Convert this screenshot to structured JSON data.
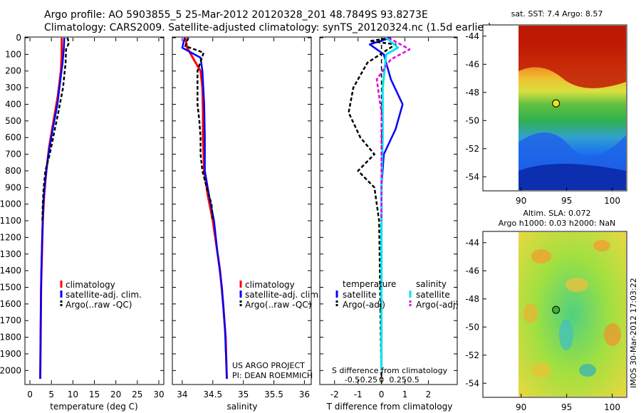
{
  "title": {
    "line1": "Argo profile: AO 5903855_5 25-Mar-2012 20120328_201 48.7849S 93.8273E",
    "line2": "Climatology: CARS2009. Satellite-adjusted climatology: synTS_20120324.nc (1.5d earlier)"
  },
  "footer": {
    "project": "US ARGO PROJECT",
    "pi": "PI: DEAN ROEMMICH"
  },
  "stamp": "IMOS 30-Mar-2012 17:03:22",
  "maps": {
    "sst": {
      "title": "sat. SST: 7.4 Argo: 8.57"
    },
    "sla": {
      "title1": "Altim. SLA: 0.072",
      "title2": "Argo h1000: 0.03 h2000: NaN"
    },
    "yticks": [
      "-44",
      "-46",
      "-48",
      "-50",
      "-52",
      "-54"
    ],
    "xticks": [
      "90",
      "95",
      "100"
    ],
    "float_marker": {
      "lon": 93.83,
      "lat": -48.78
    }
  },
  "colors": {
    "climatology": "#ff0000",
    "satellite": "#0000ff",
    "argo": "#000000",
    "sal_satellite": "#00e5ee",
    "sal_argo": "#e000e0"
  },
  "chart_data": [
    {
      "type": "line",
      "title": "",
      "xlabel": "temperature (deg C)",
      "ylabel": "",
      "xlim": [
        -1,
        31
      ],
      "ylim": [
        2080,
        0
      ],
      "xticks": [
        0,
        5,
        10,
        15,
        20,
        25,
        30
      ],
      "yticks": [
        0,
        100,
        200,
        300,
        400,
        500,
        600,
        700,
        800,
        900,
        1000,
        1100,
        1200,
        1300,
        1400,
        1500,
        1600,
        1700,
        1800,
        1900,
        2000
      ],
      "legend": [
        "climatology",
        "satellite-adj. clim.",
        "Argo(..raw -QC)"
      ],
      "series": [
        {
          "name": "climatology",
          "points": [
            [
              7.4,
              0
            ],
            [
              7.4,
              100
            ],
            [
              7.2,
              200
            ],
            [
              6.5,
              350
            ],
            [
              5.5,
              500
            ],
            [
              4.5,
              650
            ],
            [
              3.8,
              800
            ],
            [
              3.3,
              950
            ],
            [
              3.0,
              1100
            ],
            [
              2.8,
              1300
            ],
            [
              2.6,
              1500
            ],
            [
              2.5,
              1800
            ],
            [
              2.4,
              2050
            ]
          ]
        },
        {
          "name": "satellite-adj. clim.",
          "points": [
            [
              8.0,
              0
            ],
            [
              7.9,
              60
            ],
            [
              7.6,
              150
            ],
            [
              7.1,
              250
            ],
            [
              6.4,
              400
            ],
            [
              5.3,
              550
            ],
            [
              4.3,
              700
            ],
            [
              3.6,
              850
            ],
            [
              3.1,
              1000
            ],
            [
              2.85,
              1200
            ],
            [
              2.65,
              1400
            ],
            [
              2.5,
              1700
            ],
            [
              2.4,
              2050
            ]
          ]
        },
        {
          "name": "Argo(..raw -QC)",
          "points": [
            [
              8.7,
              0
            ],
            [
              9.1,
              30
            ],
            [
              8.4,
              70
            ],
            [
              8.3,
              150
            ],
            [
              7.7,
              300
            ],
            [
              6.6,
              450
            ],
            [
              5.4,
              600
            ],
            [
              4.6,
              700
            ],
            [
              3.6,
              800
            ],
            [
              3.2,
              900
            ],
            [
              3.0,
              1000
            ],
            [
              2.9,
              1100
            ]
          ]
        }
      ]
    },
    {
      "type": "line",
      "title": "",
      "xlabel": "salinity",
      "ylabel": "",
      "xlim": [
        33.85,
        36.1
      ],
      "ylim": [
        2080,
        0
      ],
      "xticks": [
        34,
        34.5,
        35,
        35.5,
        36
      ],
      "legend": [
        "climatology",
        "satellite-adj. clim.",
        "Argo(..raw -QC)"
      ],
      "series": [
        {
          "name": "climatology",
          "points": [
            [
              34.05,
              0
            ],
            [
              34.08,
              60
            ],
            [
              34.22,
              150
            ],
            [
              34.3,
              200
            ],
            [
              34.33,
              300
            ],
            [
              34.34,
              450
            ],
            [
              34.34,
              600
            ],
            [
              34.36,
              800
            ],
            [
              34.42,
              950
            ],
            [
              34.5,
              1100
            ],
            [
              34.56,
              1250
            ],
            [
              34.62,
              1400
            ],
            [
              34.67,
              1600
            ],
            [
              34.71,
              1800
            ],
            [
              34.73,
              2050
            ]
          ]
        },
        {
          "name": "satellite-adj. clim.",
          "points": [
            [
              34.04,
              0
            ],
            [
              34.0,
              60
            ],
            [
              34.15,
              90
            ],
            [
              34.3,
              120
            ],
            [
              34.33,
              200
            ],
            [
              34.36,
              400
            ],
            [
              34.37,
              600
            ],
            [
              34.37,
              800
            ],
            [
              34.44,
              950
            ],
            [
              34.52,
              1100
            ],
            [
              34.58,
              1300
            ],
            [
              34.65,
              1500
            ],
            [
              34.7,
              1750
            ],
            [
              34.73,
              2050
            ]
          ]
        },
        {
          "name": "Argo(..raw -QC)",
          "points": [
            [
              34.1,
              0
            ],
            [
              34.05,
              50
            ],
            [
              34.35,
              90
            ],
            [
              34.25,
              200
            ],
            [
              34.25,
              400
            ],
            [
              34.28,
              500
            ],
            [
              34.3,
              600
            ],
            [
              34.3,
              700
            ],
            [
              34.33,
              800
            ],
            [
              34.4,
              900
            ],
            [
              34.48,
              1000
            ],
            [
              34.5,
              1100
            ]
          ]
        }
      ]
    },
    {
      "type": "line",
      "title": "",
      "xlabel": "T difference from climatology",
      "xlabel2": "S difference from climatology",
      "xlim": [
        -2.6,
        3.2
      ],
      "ylim": [
        2080,
        0
      ],
      "xticks": [
        -2,
        -1,
        0,
        1,
        2
      ],
      "xticks_s": [
        "-0.5",
        "-0.25",
        "0",
        "0.25",
        "0.5"
      ],
      "legend_headers": [
        "temperature",
        "salinity"
      ],
      "legend": [
        "satellite",
        "Argo(-adj)",
        "satellite",
        "Argo(-adj)"
      ],
      "series": [
        {
          "name": "temperature satellite",
          "points": [
            [
              0.4,
              0
            ],
            [
              -0.5,
              40
            ],
            [
              0.1,
              100
            ],
            [
              0.4,
              250
            ],
            [
              0.9,
              400
            ],
            [
              0.6,
              550
            ],
            [
              0.1,
              700
            ],
            [
              0,
              900
            ],
            [
              0,
              2000
            ]
          ]
        },
        {
          "name": "temperature Argo(-adj)",
          "points": [
            [
              0.4,
              0
            ],
            [
              -0.5,
              20
            ],
            [
              0.6,
              40
            ],
            [
              -0.6,
              150
            ],
            [
              -1.2,
              300
            ],
            [
              -1.4,
              450
            ],
            [
              -0.9,
              600
            ],
            [
              -0.3,
              700
            ],
            [
              -1.0,
              800
            ],
            [
              -0.3,
              900
            ],
            [
              -0.1,
              1100
            ],
            [
              0,
              2050
            ]
          ]
        },
        {
          "name": "salinity satellite",
          "points": [
            [
              0.2,
              0
            ],
            [
              0.7,
              60
            ],
            [
              0.2,
              100
            ],
            [
              0.05,
              300
            ],
            [
              0.05,
              600
            ],
            [
              0,
              900
            ],
            [
              0,
              1300
            ],
            [
              0,
              2000
            ]
          ]
        },
        {
          "name": "salinity Argo(-adj)",
          "points": [
            [
              0.3,
              0
            ],
            [
              1.2,
              70
            ],
            [
              0.4,
              130
            ],
            [
              -0.2,
              250
            ],
            [
              0,
              450
            ],
            [
              0,
              600
            ],
            [
              0,
              800
            ],
            [
              0,
              1100
            ]
          ]
        }
      ]
    }
  ]
}
